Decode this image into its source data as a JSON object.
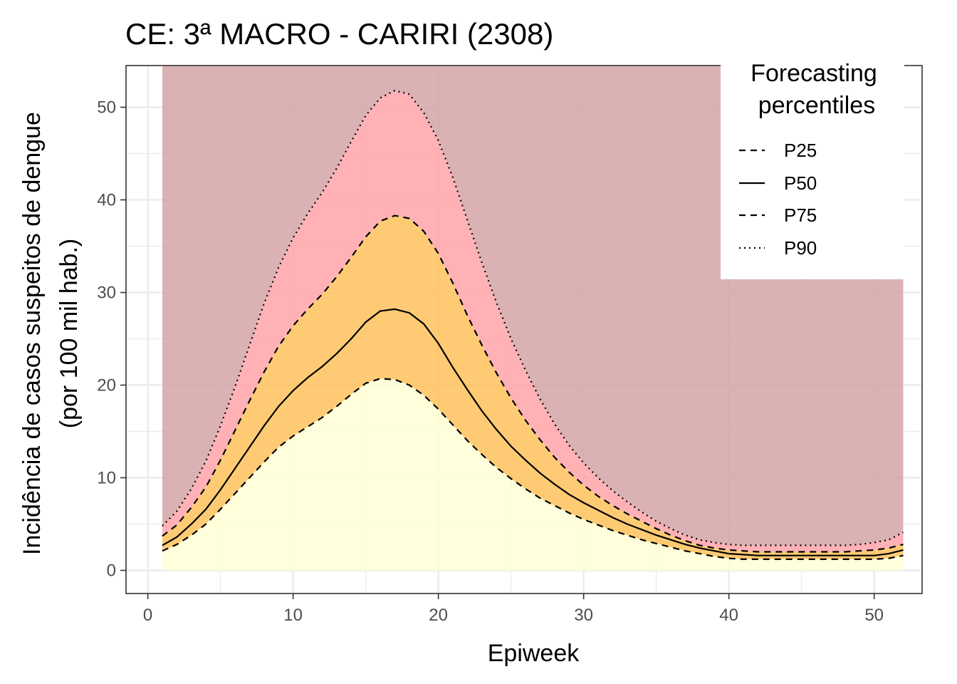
{
  "chart_data": {
    "type": "area",
    "title": "CE: 3ª MACRO - CARIRI (2308)",
    "xlabel": "Epiweek",
    "ylabel": [
      "Incidência de casos suspeitos de dengue",
      "(por 100 mil hab.)"
    ],
    "xlim": [
      -1.5,
      53.3
    ],
    "ylim": [
      -2.5,
      54.5
    ],
    "x_ticks": [
      0,
      10,
      20,
      30,
      40,
      50
    ],
    "y_ticks": [
      0,
      10,
      20,
      30,
      40,
      50
    ],
    "grid": true,
    "legend": {
      "position": "top-right",
      "title": [
        "Forecasting",
        "percentiles"
      ],
      "entries": [
        {
          "label": "P25",
          "dash": "dashed"
        },
        {
          "label": "P50",
          "dash": "solid"
        },
        {
          "label": "P75",
          "dash": "dashed"
        },
        {
          "label": "P90",
          "dash": "dotted"
        }
      ]
    },
    "bands": [
      {
        "from": "P25",
        "to": "floor",
        "color": "#ffffd6"
      },
      {
        "from": "P75",
        "to": "P25",
        "color": "#fec25c"
      },
      {
        "from": "P90",
        "to": "P75",
        "color": "#ffa3a9"
      },
      {
        "from": "top",
        "to": "P90",
        "color": "#d4a5a7"
      }
    ],
    "x": [
      1,
      2,
      3,
      4,
      5,
      6,
      7,
      8,
      9,
      10,
      11,
      12,
      13,
      14,
      15,
      16,
      17,
      18,
      19,
      20,
      21,
      22,
      23,
      24,
      25,
      26,
      27,
      28,
      29,
      30,
      31,
      32,
      33,
      34,
      35,
      36,
      37,
      38,
      39,
      40,
      41,
      42,
      43,
      44,
      45,
      46,
      47,
      48,
      49,
      50,
      51,
      52
    ],
    "series": [
      {
        "name": "P25",
        "values": [
          2.1,
          2.8,
          3.8,
          5.0,
          6.6,
          8.3,
          10.0,
          11.7,
          13.3,
          14.5,
          15.5,
          16.5,
          17.7,
          19.0,
          20.2,
          20.7,
          20.6,
          20.0,
          18.9,
          17.4,
          15.7,
          14.0,
          12.5,
          11.1,
          9.9,
          8.8,
          7.8,
          7.0,
          6.2,
          5.5,
          4.9,
          4.3,
          3.8,
          3.3,
          2.9,
          2.5,
          2.1,
          1.8,
          1.5,
          1.3,
          1.2,
          1.2,
          1.2,
          1.2,
          1.2,
          1.2,
          1.2,
          1.2,
          1.2,
          1.2,
          1.3,
          1.6
        ]
      },
      {
        "name": "P50",
        "values": [
          2.7,
          3.6,
          5.0,
          6.6,
          8.7,
          11.0,
          13.3,
          15.6,
          17.7,
          19.4,
          20.8,
          22.0,
          23.4,
          25.0,
          26.8,
          28.0,
          28.2,
          27.8,
          26.6,
          24.5,
          21.9,
          19.5,
          17.2,
          15.2,
          13.4,
          11.9,
          10.5,
          9.3,
          8.2,
          7.3,
          6.5,
          5.7,
          5.0,
          4.4,
          3.8,
          3.3,
          2.8,
          2.4,
          2.1,
          1.8,
          1.7,
          1.6,
          1.6,
          1.6,
          1.6,
          1.6,
          1.6,
          1.6,
          1.6,
          1.6,
          1.8,
          2.2
        ]
      },
      {
        "name": "P75",
        "values": [
          3.7,
          4.9,
          6.8,
          9.0,
          11.9,
          15.1,
          18.3,
          21.4,
          24.2,
          26.4,
          28.2,
          29.8,
          31.7,
          33.8,
          36.0,
          37.7,
          38.3,
          38.0,
          36.6,
          34.2,
          31.0,
          27.5,
          24.3,
          21.3,
          18.6,
          16.2,
          14.1,
          12.2,
          10.6,
          9.2,
          8.0,
          7.0,
          6.1,
          5.3,
          4.5,
          3.8,
          3.2,
          2.7,
          2.4,
          2.2,
          2.1,
          2.0,
          2.0,
          2.0,
          2.0,
          2.0,
          2.0,
          2.0,
          2.1,
          2.2,
          2.4,
          2.8
        ]
      },
      {
        "name": "P90",
        "values": [
          4.8,
          6.4,
          8.8,
          11.8,
          15.6,
          19.8,
          24.3,
          28.8,
          32.7,
          35.9,
          38.5,
          40.8,
          43.4,
          46.3,
          49.1,
          51.0,
          51.8,
          51.4,
          49.4,
          46.4,
          42.4,
          37.8,
          33.2,
          28.9,
          25.0,
          21.6,
          18.5,
          15.8,
          13.5,
          11.6,
          10.0,
          8.6,
          7.4,
          6.3,
          5.3,
          4.5,
          3.8,
          3.3,
          3.0,
          2.8,
          2.7,
          2.7,
          2.7,
          2.7,
          2.7,
          2.7,
          2.7,
          2.7,
          2.8,
          3.0,
          3.3,
          4.1
        ]
      }
    ]
  }
}
